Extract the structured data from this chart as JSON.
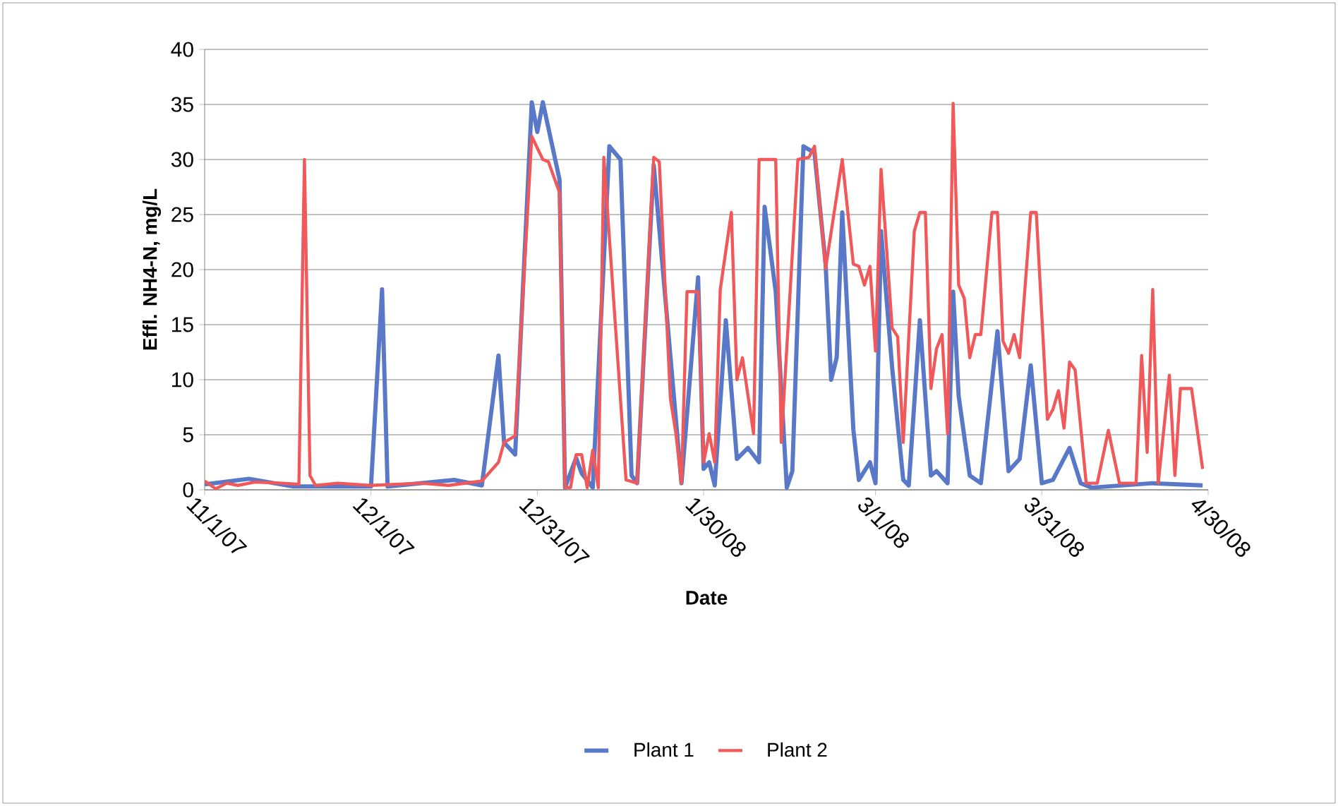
{
  "chart_data": {
    "type": "line",
    "xlabel": "Date",
    "ylabel": "Effl. NH4-N, mg/L",
    "xlim": [
      "2007-11-01",
      "2008-04-30"
    ],
    "xticks": [
      {
        "value": "2007-11-01",
        "label": "11/1/07"
      },
      {
        "value": "2007-12-01",
        "label": "12/1/07"
      },
      {
        "value": "2007-12-31",
        "label": "12/31/07"
      },
      {
        "value": "2008-01-30",
        "label": "1/30/08"
      },
      {
        "value": "2008-03-01",
        "label": "3/1/08"
      },
      {
        "value": "2008-03-31",
        "label": "3/31/08"
      },
      {
        "value": "2008-04-30",
        "label": "4/30/08"
      }
    ],
    "ylim": [
      0,
      40
    ],
    "yticks": [
      0,
      5,
      10,
      15,
      20,
      25,
      30,
      35,
      40
    ],
    "grid": "y",
    "legend": "bottom",
    "series": [
      {
        "name": "Plant 1",
        "color": "#5a78c8",
        "x": [
          "2007-11-01",
          "2007-11-09",
          "2007-11-17",
          "2007-12-01",
          "2007-12-03",
          "2007-12-04",
          "2007-12-16",
          "2007-12-21",
          "2007-12-24",
          "2007-12-25",
          "2007-12-27",
          "2007-12-30",
          "2007-12-31",
          "2008-01-01",
          "2008-01-04",
          "2008-01-05",
          "2008-01-07",
          "2008-01-08",
          "2008-01-10",
          "2008-01-13",
          "2008-01-15",
          "2008-01-17",
          "2008-01-18",
          "2008-01-21",
          "2008-01-26",
          "2008-01-29",
          "2008-01-30",
          "2008-01-31",
          "2008-02-01",
          "2008-02-03",
          "2008-02-05",
          "2008-02-07",
          "2008-02-09",
          "2008-02-10",
          "2008-02-12",
          "2008-02-14",
          "2008-02-15",
          "2008-02-17",
          "2008-02-19",
          "2008-02-21",
          "2008-02-22",
          "2008-02-23",
          "2008-02-24",
          "2008-02-26",
          "2008-02-27",
          "2008-02-29",
          "2008-03-01",
          "2008-03-02",
          "2008-03-04",
          "2008-03-06",
          "2008-03-07",
          "2008-03-09",
          "2008-03-11",
          "2008-03-12",
          "2008-03-14",
          "2008-03-15",
          "2008-03-16",
          "2008-03-18",
          "2008-03-20",
          "2008-03-23",
          "2008-03-25",
          "2008-03-27",
          "2008-03-29",
          "2008-03-31",
          "2008-04-02",
          "2008-04-05",
          "2008-04-07",
          "2008-04-09",
          "2008-04-20",
          "2008-04-29"
        ],
        "values": [
          0.5,
          1,
          0.3,
          0.3,
          18.2,
          0.3,
          0.9,
          0.4,
          12.2,
          4.3,
          3.2,
          35.2,
          32.5,
          35.2,
          28.2,
          0.2,
          2.9,
          1.5,
          0.2,
          31.2,
          30,
          1.3,
          0.6,
          29.5,
          0.6,
          19.3,
          1.9,
          2.5,
          0.4,
          15.4,
          2.8,
          3.8,
          2.5,
          25.7,
          18,
          0.2,
          1.7,
          31.2,
          30.6,
          20.5,
          10,
          12,
          25.2,
          5.5,
          0.9,
          2.5,
          0.6,
          23.5,
          11.1,
          0.9,
          0.4,
          15.4,
          1.3,
          1.7,
          0.6,
          18,
          8.5,
          1.3,
          0.6,
          14.4,
          1.7,
          2.8,
          11.3,
          0.6,
          0.9,
          3.8,
          0.6,
          0.2,
          0.6,
          0.4
        ]
      },
      {
        "name": "Plant 2",
        "color": "#f0585a",
        "x": [
          "2007-11-01",
          "2007-11-03",
          "2007-11-05",
          "2007-11-07",
          "2007-11-10",
          "2007-11-15",
          "2007-11-18",
          "2007-11-19",
          "2007-11-20",
          "2007-11-21",
          "2007-11-25",
          "2007-12-01",
          "2007-12-10",
          "2007-12-15",
          "2007-12-21",
          "2007-12-24",
          "2007-12-25",
          "2007-12-27",
          "2007-12-30",
          "2008-01-01",
          "2008-01-02",
          "2008-01-04",
          "2008-01-05",
          "2008-01-06",
          "2008-01-07",
          "2008-01-08",
          "2008-01-09",
          "2008-01-10",
          "2008-01-11",
          "2008-01-12",
          "2008-01-16",
          "2008-01-18",
          "2008-01-21",
          "2008-01-22",
          "2008-01-24",
          "2008-01-25",
          "2008-01-26",
          "2008-01-27",
          "2008-01-29",
          "2008-01-30",
          "2008-01-31",
          "2008-02-01",
          "2008-02-02",
          "2008-02-04",
          "2008-02-05",
          "2008-02-06",
          "2008-02-08",
          "2008-02-09",
          "2008-02-12",
          "2008-02-13",
          "2008-02-16",
          "2008-02-18",
          "2008-02-19",
          "2008-02-21",
          "2008-02-24",
          "2008-02-26",
          "2008-02-27",
          "2008-02-28",
          "2008-02-29",
          "2008-03-01",
          "2008-03-02",
          "2008-03-04",
          "2008-03-05",
          "2008-03-06",
          "2008-03-08",
          "2008-03-09",
          "2008-03-10",
          "2008-03-11",
          "2008-03-12",
          "2008-03-13",
          "2008-03-14",
          "2008-03-15",
          "2008-03-16",
          "2008-03-17",
          "2008-03-18",
          "2008-03-19",
          "2008-03-20",
          "2008-03-22",
          "2008-03-23",
          "2008-03-24",
          "2008-03-25",
          "2008-03-26",
          "2008-03-27",
          "2008-03-29",
          "2008-03-30",
          "2008-04-01",
          "2008-04-02",
          "2008-04-03",
          "2008-04-04",
          "2008-04-05",
          "2008-04-06",
          "2008-04-08",
          "2008-04-10",
          "2008-04-12",
          "2008-04-14",
          "2008-04-17",
          "2008-04-18",
          "2008-04-19",
          "2008-04-20",
          "2008-04-21",
          "2008-04-23",
          "2008-04-24",
          "2008-04-25",
          "2008-04-27",
          "2008-04-29"
        ],
        "values": [
          0.8,
          0.1,
          0.6,
          0.4,
          0.7,
          0.6,
          0.5,
          30,
          1.3,
          0.4,
          0.6,
          0.4,
          0.6,
          0.4,
          0.8,
          2.5,
          4.3,
          4.9,
          32.1,
          30,
          29.8,
          27,
          0.2,
          0.2,
          3.2,
          3.2,
          0.2,
          3.6,
          0.2,
          30.2,
          0.9,
          0.6,
          30.2,
          29.8,
          8.3,
          5.1,
          0.6,
          18,
          18,
          2.5,
          5.1,
          2.5,
          18.2,
          25.2,
          10,
          12,
          5.1,
          30,
          30,
          4.3,
          30,
          30.2,
          31.2,
          20.1,
          30,
          20.5,
          20.3,
          18.6,
          20.3,
          12.6,
          29.1,
          14.7,
          13.9,
          4.3,
          23.5,
          25.2,
          25.2,
          9.2,
          12.8,
          14.1,
          5.1,
          35.1,
          18.6,
          17.4,
          12,
          14.1,
          14.1,
          25.2,
          25.2,
          13.5,
          12.4,
          14.1,
          12,
          25.2,
          25.2,
          6.4,
          7.3,
          9,
          5.6,
          11.6,
          10.9,
          0.6,
          0.6,
          5.4,
          0.6,
          0.6,
          12.2,
          3.4,
          18.2,
          0.6,
          10.4,
          1.3,
          9.2,
          9.2,
          1.9
        ]
      }
    ]
  }
}
